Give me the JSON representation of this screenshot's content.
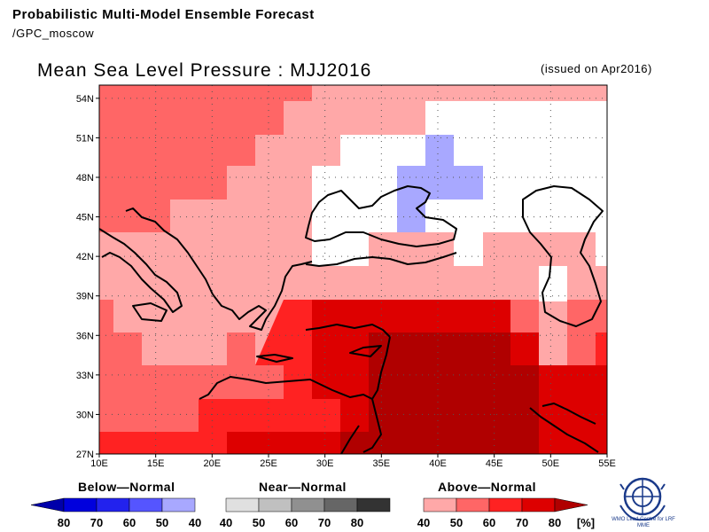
{
  "header": {
    "line1": "Probabilistic Multi-Model Ensemble Forecast",
    "line2": "/GPC_moscow"
  },
  "map": {
    "title": "Mean Sea Level Pressure : MJJ2016",
    "issued": "(issued on Apr2016)",
    "lon_range": [
      10,
      55
    ],
    "lat_range": [
      27,
      55
    ],
    "x_ticks": [
      "10E",
      "15E",
      "20E",
      "25E",
      "30E",
      "35E",
      "40E",
      "45E",
      "50E",
      "55E"
    ],
    "y_ticks": [
      "54N",
      "51N",
      "48N",
      "45N",
      "42N",
      "39N",
      "36N",
      "33N",
      "30N",
      "27N"
    ],
    "grid": true
  },
  "legend": {
    "below_title": "Below—Normal",
    "near_title": "Near—Normal",
    "above_title": "Above—Normal",
    "below_labels": [
      "80",
      "70",
      "60",
      "50",
      "40"
    ],
    "near_labels": [
      "40",
      "50",
      "60",
      "70",
      "80"
    ],
    "above_labels": [
      "40",
      "50",
      "60",
      "70",
      "80"
    ],
    "unit": "[%]",
    "below_colors": [
      "#0000aa",
      "#0000dd",
      "#2222ee",
      "#5555ff",
      "#a8a8ff"
    ],
    "near_colors": [
      "#e0e0e0",
      "#c0c0c0",
      "#909090",
      "#666666",
      "#333333"
    ],
    "above_colors": [
      "#ffa8a8",
      "#ff6666",
      "#ff2222",
      "#dd0000",
      "#b00000"
    ]
  },
  "logo": {
    "caption": "WMO Lead Centre for LRF MME"
  },
  "colors": {
    "frame": "#000000",
    "coast": "#000000"
  }
}
